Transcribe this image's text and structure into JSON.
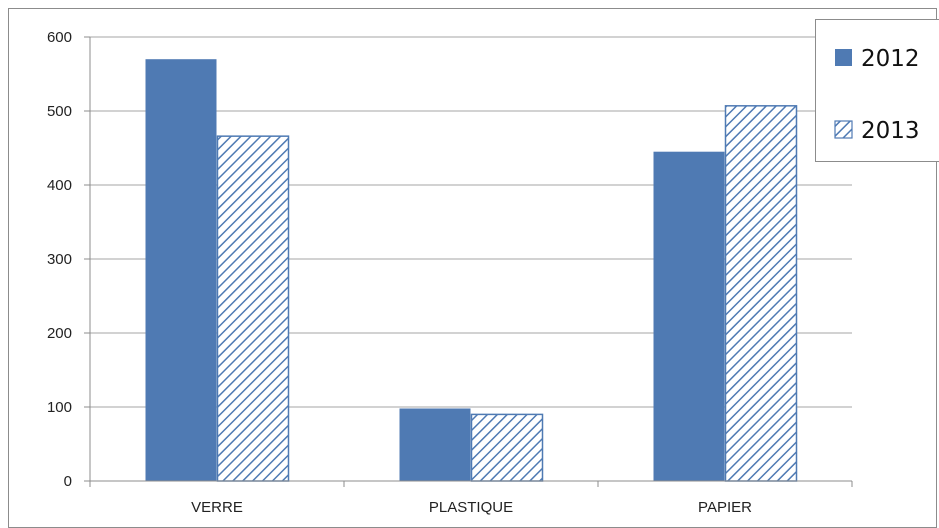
{
  "chart_data": {
    "type": "bar",
    "categories": [
      "VERRE",
      "PLASTIQUE",
      "PAPIER"
    ],
    "series": [
      {
        "name": "2012",
        "values": [
          570,
          98,
          445
        ],
        "color": "#4f7ab3",
        "fill": "solid"
      },
      {
        "name": "2013",
        "values": [
          466,
          90,
          507
        ],
        "color": "#4f7ab3",
        "fill": "diagonal-hatch"
      }
    ],
    "ylim": [
      0,
      600
    ],
    "yticks": [
      0,
      100,
      200,
      300,
      400,
      500,
      600
    ],
    "grid": true,
    "legend": "top-right",
    "title": "",
    "xlabel": "",
    "ylabel": ""
  }
}
